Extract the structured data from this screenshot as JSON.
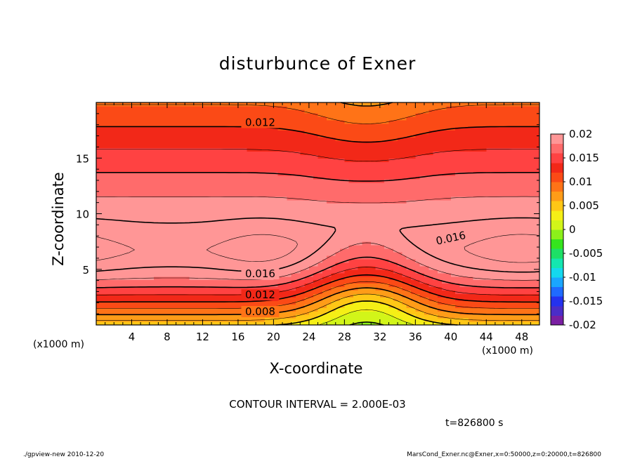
{
  "chart_data": {
    "type": "heatmap",
    "title": "disturbunce of Exner",
    "xlabel": "X-coordinate",
    "ylabel": "Z-coordinate",
    "x_unit_label": "(x1000 m)",
    "y_unit_label": "(x1000 m)",
    "xlim": [
      0,
      50
    ],
    "ylim": [
      0,
      20
    ],
    "xticks": [
      "4",
      "8",
      "12",
      "16",
      "20",
      "24",
      "28",
      "32",
      "36",
      "40",
      "44",
      "48"
    ],
    "yticks": [
      "5",
      "10",
      "15"
    ],
    "contour_interval_label": "CONTOUR INTERVAL = 2.000E-03",
    "time_label": "t=826800 s",
    "contour_labels": [
      {
        "text": "0.012",
        "x": 18.5,
        "z": 18.2
      },
      {
        "text": "0.016",
        "x": 40.0,
        "z": 7.8
      },
      {
        "text": "0.016",
        "x": 18.5,
        "z": 4.6
      },
      {
        "text": "0.012",
        "x": 18.5,
        "z": 2.7
      },
      {
        "text": "0.008",
        "x": 18.5,
        "z": 1.2
      }
    ],
    "colorbar": {
      "min": -0.02,
      "max": 0.02,
      "labels": [
        "0.02",
        "0.015",
        "0.01",
        "0.005",
        "0",
        "-0.005",
        "-0.01",
        "-0.015",
        "-0.02"
      ],
      "colors": [
        "#7a1fa2",
        "#4b2dc8",
        "#2432ef",
        "#1f6bff",
        "#1aa6ff",
        "#14d8ee",
        "#14e6b0",
        "#1de066",
        "#35e41d",
        "#8cf01a",
        "#d2f519",
        "#f5ef16",
        "#ffc716",
        "#ff9c18",
        "#ff7317",
        "#fb4a16",
        "#f22818",
        "#ff4242",
        "#ff6b6b",
        "#ff9696"
      ]
    }
  },
  "footer": {
    "left": "./gpview-new   2010-12-20",
    "right": "MarsCond_Exner.nc@Exner,x=0:50000,z=0:20000,t=826800"
  }
}
